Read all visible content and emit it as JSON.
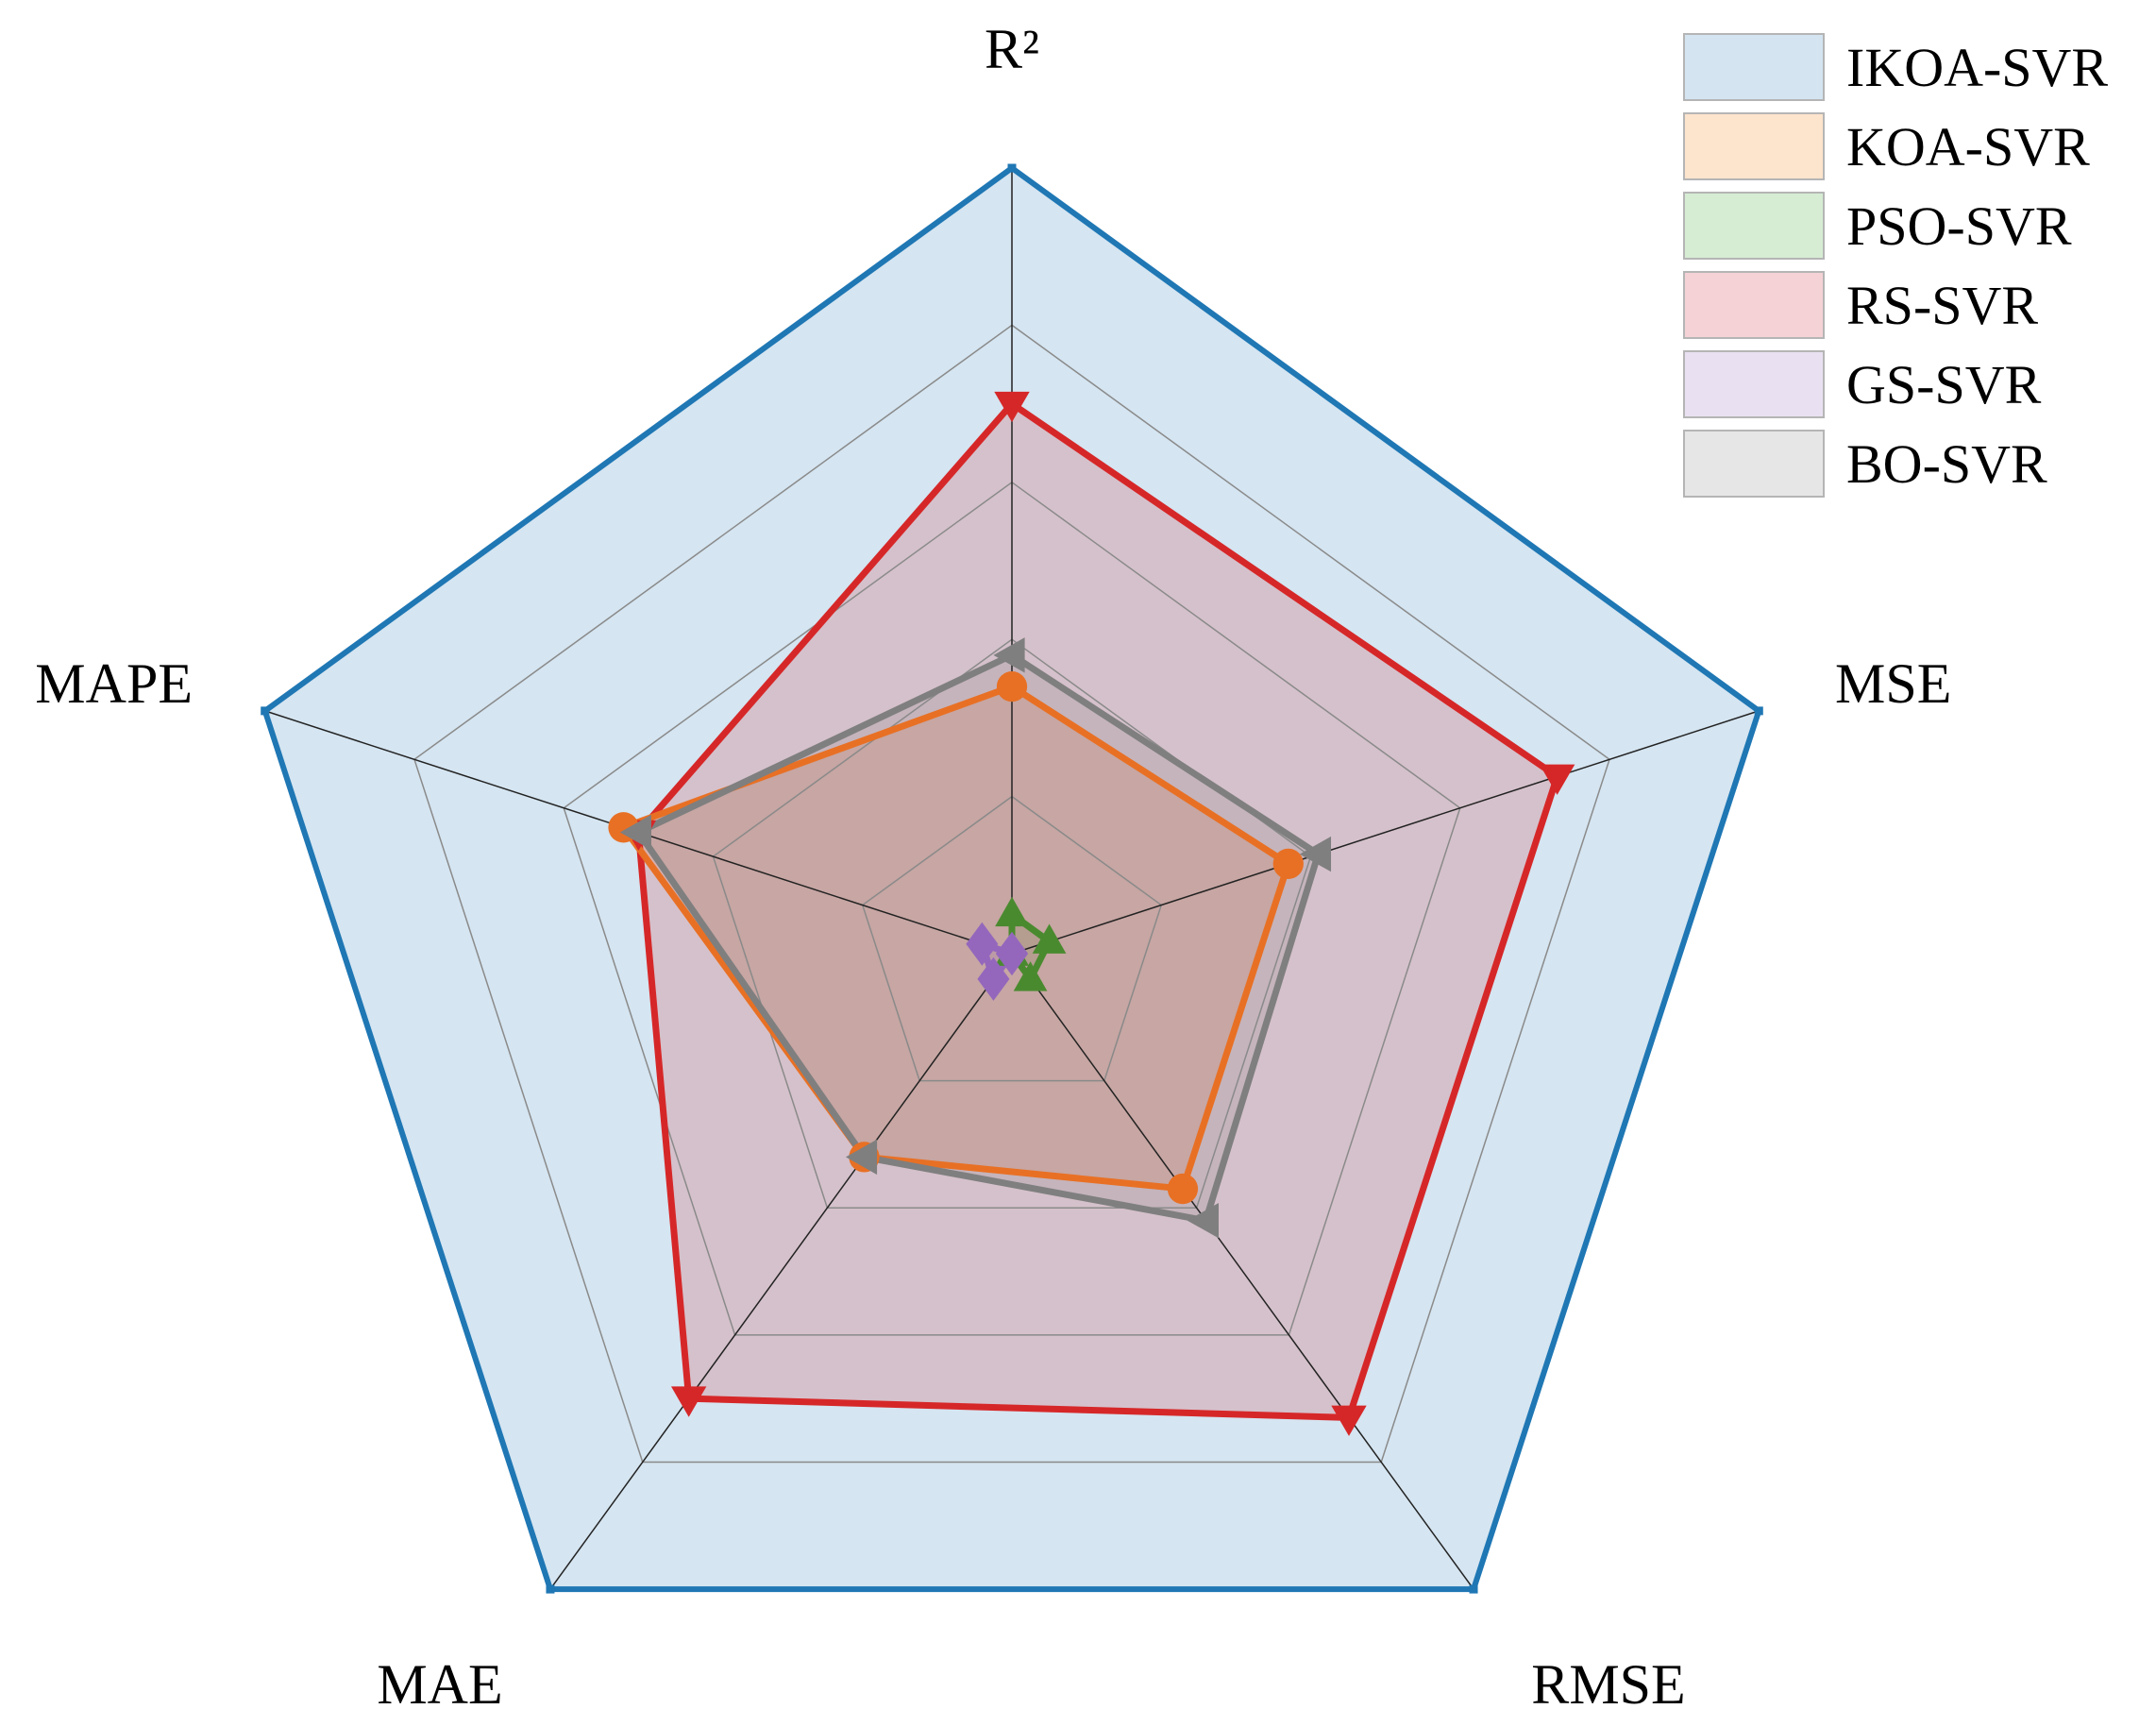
{
  "chart_data": {
    "type": "radar",
    "axes": [
      "R²",
      "MSE",
      "RMSE",
      "MAE",
      "MAPE"
    ],
    "rlim": [
      0,
      1
    ],
    "grid_levels": [
      0.2,
      0.4,
      0.6,
      0.8,
      1.0
    ],
    "grid": true,
    "legend_position": "top-right",
    "series": [
      {
        "name": "IKOA-SVR",
        "color": "#1f77b4",
        "fill": "#d4e4f1",
        "marker": "square",
        "values": [
          1.0,
          1.0,
          1.0,
          1.0,
          1.0
        ]
      },
      {
        "name": "KOA-SVR",
        "color": "#e87024",
        "fill": "#fde4cc",
        "marker": "circle",
        "values": [
          0.34,
          0.37,
          0.37,
          0.32,
          0.52
        ]
      },
      {
        "name": "PSO-SVR",
        "color": "#4a8a2f",
        "fill": "#d6edd4",
        "marker": "triangle-up",
        "values": [
          0.05,
          0.05,
          0.04,
          0.0,
          0.0
        ]
      },
      {
        "name": "RS-SVR",
        "color": "#d62728",
        "fill": "#f5d2d6",
        "marker": "triangle-down",
        "values": [
          0.7,
          0.73,
          0.73,
          0.7,
          0.5
        ]
      },
      {
        "name": "GS-SVR",
        "color": "#9467bd",
        "fill": "#e9e1f1",
        "marker": "diamond",
        "values": [
          0.0,
          0.0,
          0.0,
          0.04,
          0.04
        ]
      },
      {
        "name": "BO-SVR",
        "color": "#7f7f7f",
        "fill": "#e6e6e6",
        "marker": "triangle-left",
        "values": [
          0.38,
          0.41,
          0.42,
          0.32,
          0.5
        ]
      }
    ]
  }
}
